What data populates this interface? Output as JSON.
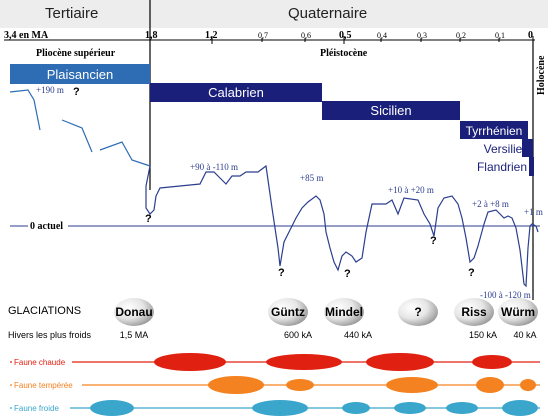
{
  "header": {
    "era_left": "Tertiaire",
    "era_right": "Quaternaire",
    "epoch_left": "Pliocène supérieur",
    "epoch_mid": "Pléistocène",
    "epoch_right": "Holocène"
  },
  "timescale": {
    "start_label": "3,4 en MA",
    "ticks": [
      "1,8",
      "1,2",
      "0,7",
      "0,6",
      "0,5",
      "0,4",
      "0,3",
      "0,2",
      "0,1",
      "0"
    ]
  },
  "stages": [
    "Plaisancien",
    "Calabrien",
    "Sicilien",
    "Tyrrhénien",
    "Versilien",
    "Flandrien"
  ],
  "sea_level": {
    "baseline_label": "0 actuel",
    "annotations": [
      "+190 m",
      "?",
      "+90 à -110 m",
      "?",
      "+85 m",
      "?",
      "?",
      "+10 à +20 m",
      "?",
      "+2 à +8 m",
      "+1 m",
      "?",
      "-100 à -120 m"
    ]
  },
  "glaciations": {
    "heading": "GLACIATIONS",
    "subheading": "Hivers les plus froids",
    "names": [
      "Donau",
      "Güntz",
      "Mindel",
      "?",
      "Riss",
      "Würm"
    ],
    "ages": [
      "1,5 MA",
      "600 kA",
      "440 kA",
      "150 kA",
      "40 kA"
    ]
  },
  "fauna": {
    "rows": [
      {
        "label": "Faune chaude",
        "color": "#e02010"
      },
      {
        "label": "Faune tempérée",
        "color": "#f58220"
      },
      {
        "label": "Faune froide",
        "color": "#3aa6cc"
      }
    ]
  },
  "colors": {
    "plaisancien_blue": "#2e6db4",
    "stage_navy": "#1a1f7a",
    "sea_line": "#2c3e8f"
  }
}
